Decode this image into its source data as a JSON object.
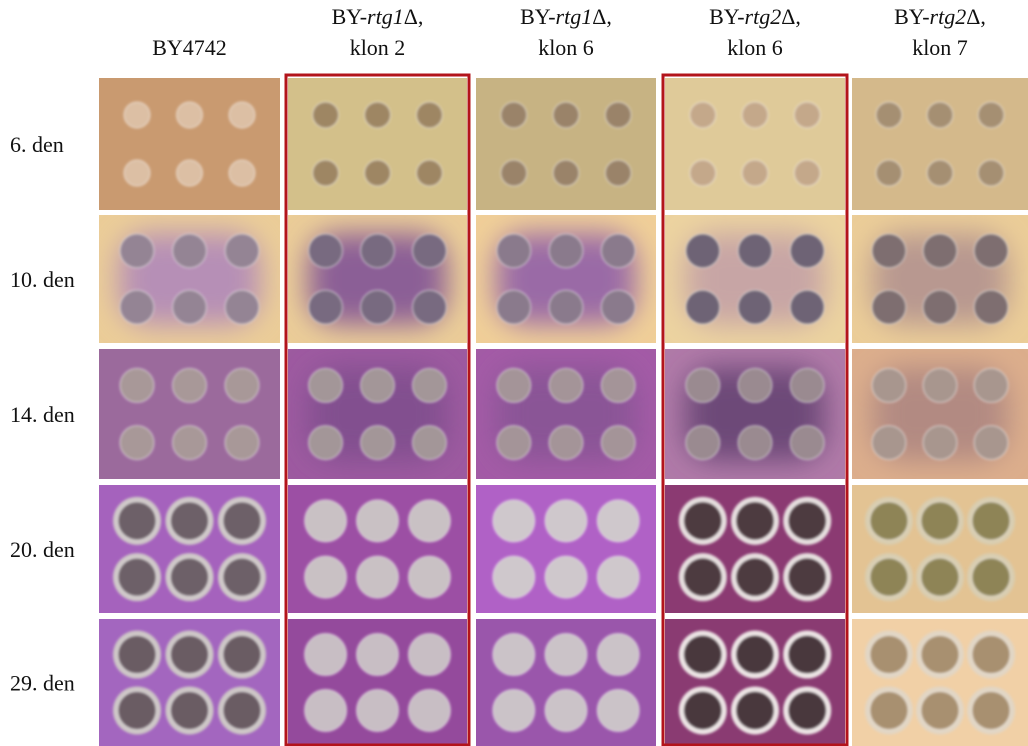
{
  "columns": [
    {
      "line1": "BY4742"
    },
    {
      "prefix": "BY-",
      "gene": "rtg1",
      "suffix": "Δ,",
      "line2": "klon 2"
    },
    {
      "prefix": "BY-",
      "gene": "rtg1",
      "suffix": "Δ,",
      "line2": "klon 6"
    },
    {
      "prefix": "BY-",
      "gene": "rtg2",
      "suffix": "Δ,",
      "line2": "klon 6"
    },
    {
      "prefix": "BY-",
      "gene": "rtg2",
      "suffix": "Δ,",
      "line2": "klon 7"
    }
  ],
  "rows": [
    "6. den",
    "10. den",
    "14. den",
    "20. den",
    "29. den"
  ]
}
